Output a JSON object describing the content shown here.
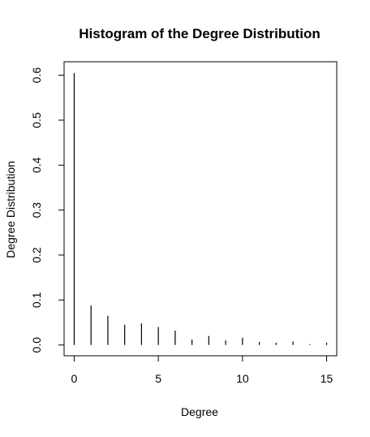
{
  "chart_data": {
    "type": "bar",
    "title": "Histogram of the Degree Distribution",
    "xlabel": "Degree",
    "ylabel": "Degree Distribution",
    "x": [
      0,
      1,
      2,
      3,
      4,
      5,
      6,
      7,
      8,
      9,
      10,
      11,
      12,
      13,
      14,
      15
    ],
    "values": [
      0.605,
      0.088,
      0.065,
      0.045,
      0.048,
      0.04,
      0.032,
      0.012,
      0.02,
      0.01,
      0.016,
      0.007,
      0.005,
      0.008,
      0.002,
      0.005
    ],
    "xlim": [
      -0.6,
      15.6
    ],
    "ylim": [
      -0.024,
      0.63
    ],
    "xticks": [
      0,
      5,
      10,
      15
    ],
    "yticks": [
      0.0,
      0.1,
      0.2,
      0.3,
      0.4,
      0.5,
      0.6
    ],
    "xtick_labels": [
      "0",
      "5",
      "10",
      "15"
    ],
    "ytick_labels": [
      "0.0",
      "0.1",
      "0.2",
      "0.3",
      "0.4",
      "0.5",
      "0.6"
    ],
    "grid": false,
    "legend": "none"
  }
}
